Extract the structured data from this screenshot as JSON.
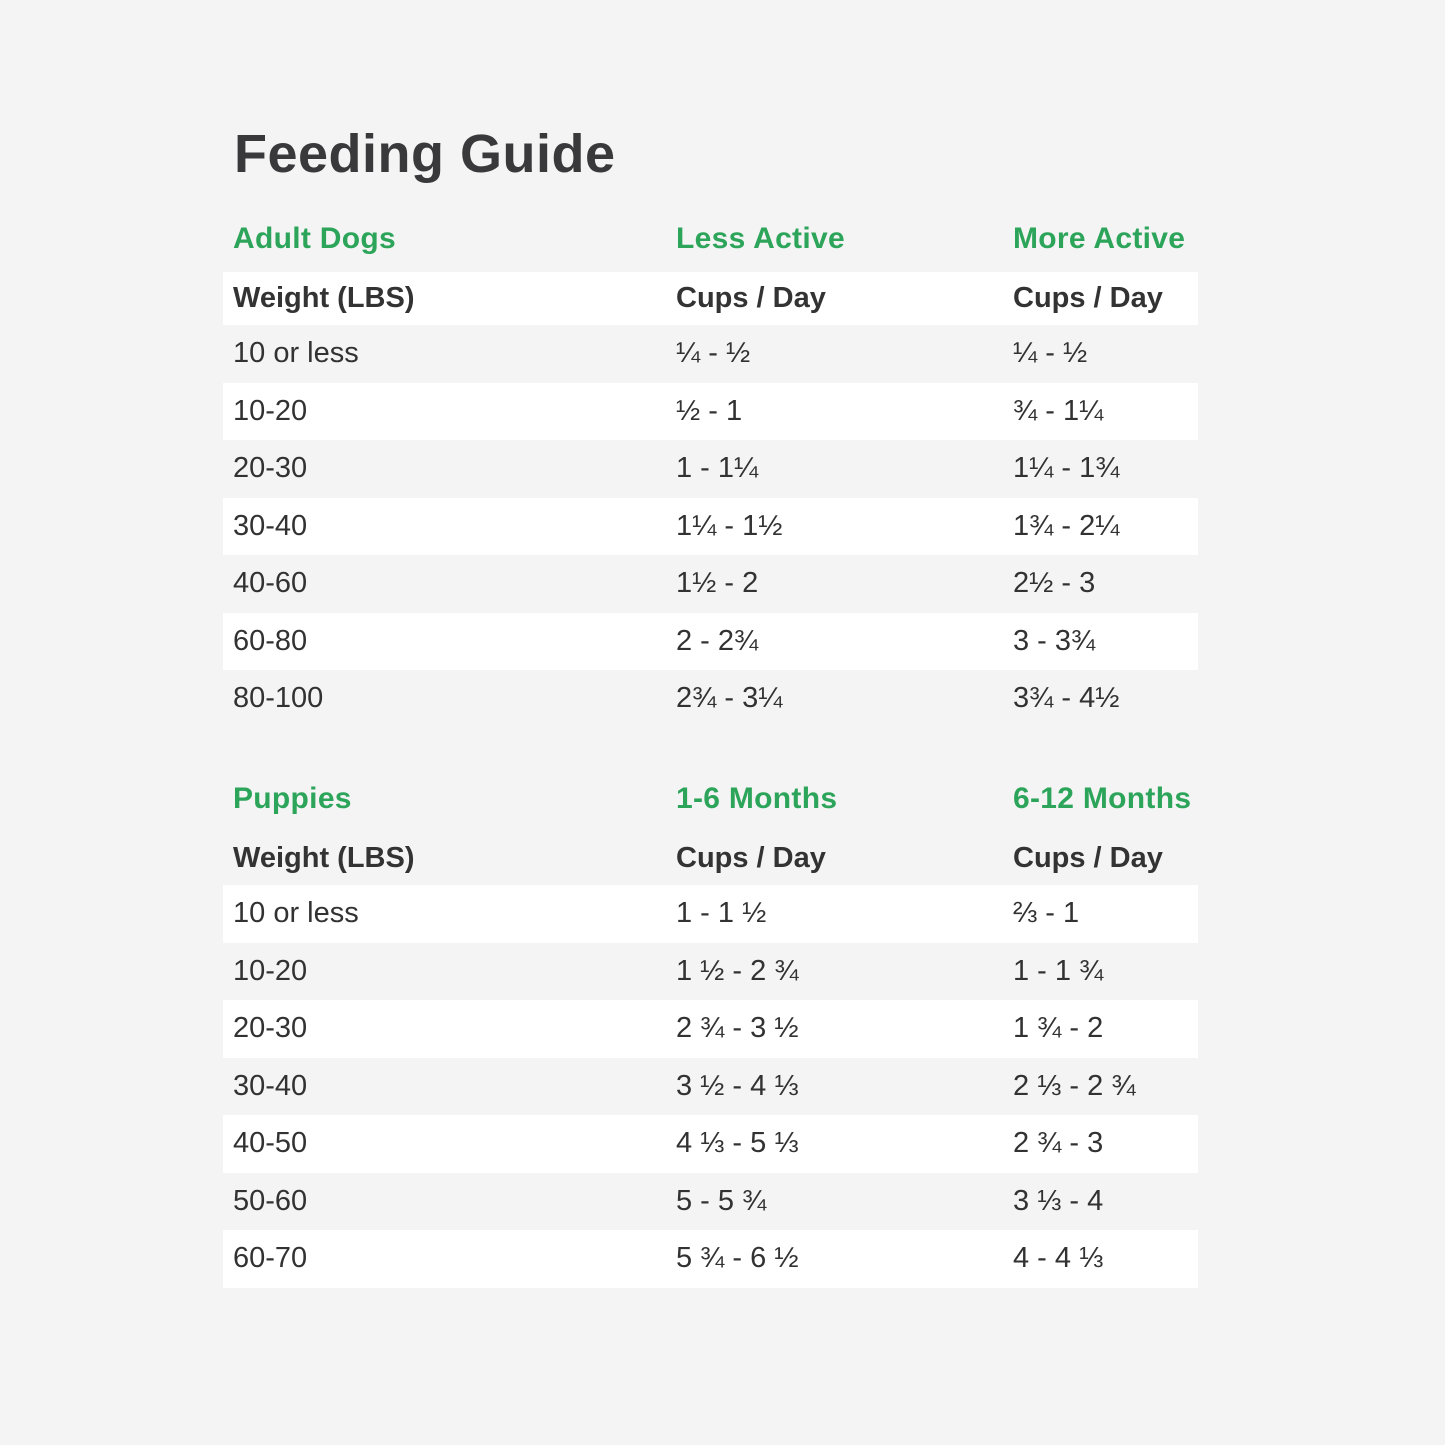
{
  "page": {
    "title": "Feeding Guide",
    "background_color": "#f5f4f4",
    "stripe_color": "#ffffff",
    "accent_green": "#2ca55b",
    "text_color": "#323232"
  },
  "chart_data": [
    {
      "type": "table",
      "title": "Feeding Guide",
      "section": "Adult Dogs",
      "group_headers": [
        "Adult Dogs",
        "Less Active",
        "More Active"
      ],
      "col_headers": [
        "Weight (LBS)",
        "Cups / Day",
        "Cups / Day"
      ],
      "rows": [
        [
          "10 or less",
          "¼ - ½",
          "¼ - ½"
        ],
        [
          "10-20",
          "½ - 1",
          "¾ - 1¼"
        ],
        [
          "20-30",
          "1 - 1¼",
          "1¼ - 1¾"
        ],
        [
          "30-40",
          "1¼ - 1½",
          "1¾ - 2¼"
        ],
        [
          "40-60",
          "1½ - 2",
          "2½ - 3"
        ],
        [
          "60-80",
          "2 - 2¾",
          "3 - 3¾"
        ],
        [
          "80-100",
          "2¾ - 3¼",
          "3¾ - 4½"
        ]
      ]
    },
    {
      "type": "table",
      "title": "Feeding Guide",
      "section": "Puppies",
      "group_headers": [
        "Puppies",
        "1-6 Months",
        "6-12 Months"
      ],
      "col_headers": [
        "Weight (LBS)",
        "Cups / Day",
        "Cups / Day"
      ],
      "rows": [
        [
          "10 or less",
          "1 - 1 ½",
          "⅔ - 1"
        ],
        [
          "10-20",
          "1 ½ - 2 ¾",
          "1 - 1 ¾"
        ],
        [
          "20-30",
          "2 ¾ - 3 ½",
          "1 ¾ - 2"
        ],
        [
          "30-40",
          "3 ½ - 4 ⅓",
          "2 ⅓ - 2 ¾"
        ],
        [
          "40-50",
          "4 ⅓ - 5 ⅓",
          "2 ¾ - 3"
        ],
        [
          "50-60",
          "5 - 5 ¾",
          "3 ⅓ - 4"
        ],
        [
          "60-70",
          "5 ¾ - 6 ½",
          "4 - 4 ⅓"
        ]
      ]
    }
  ]
}
